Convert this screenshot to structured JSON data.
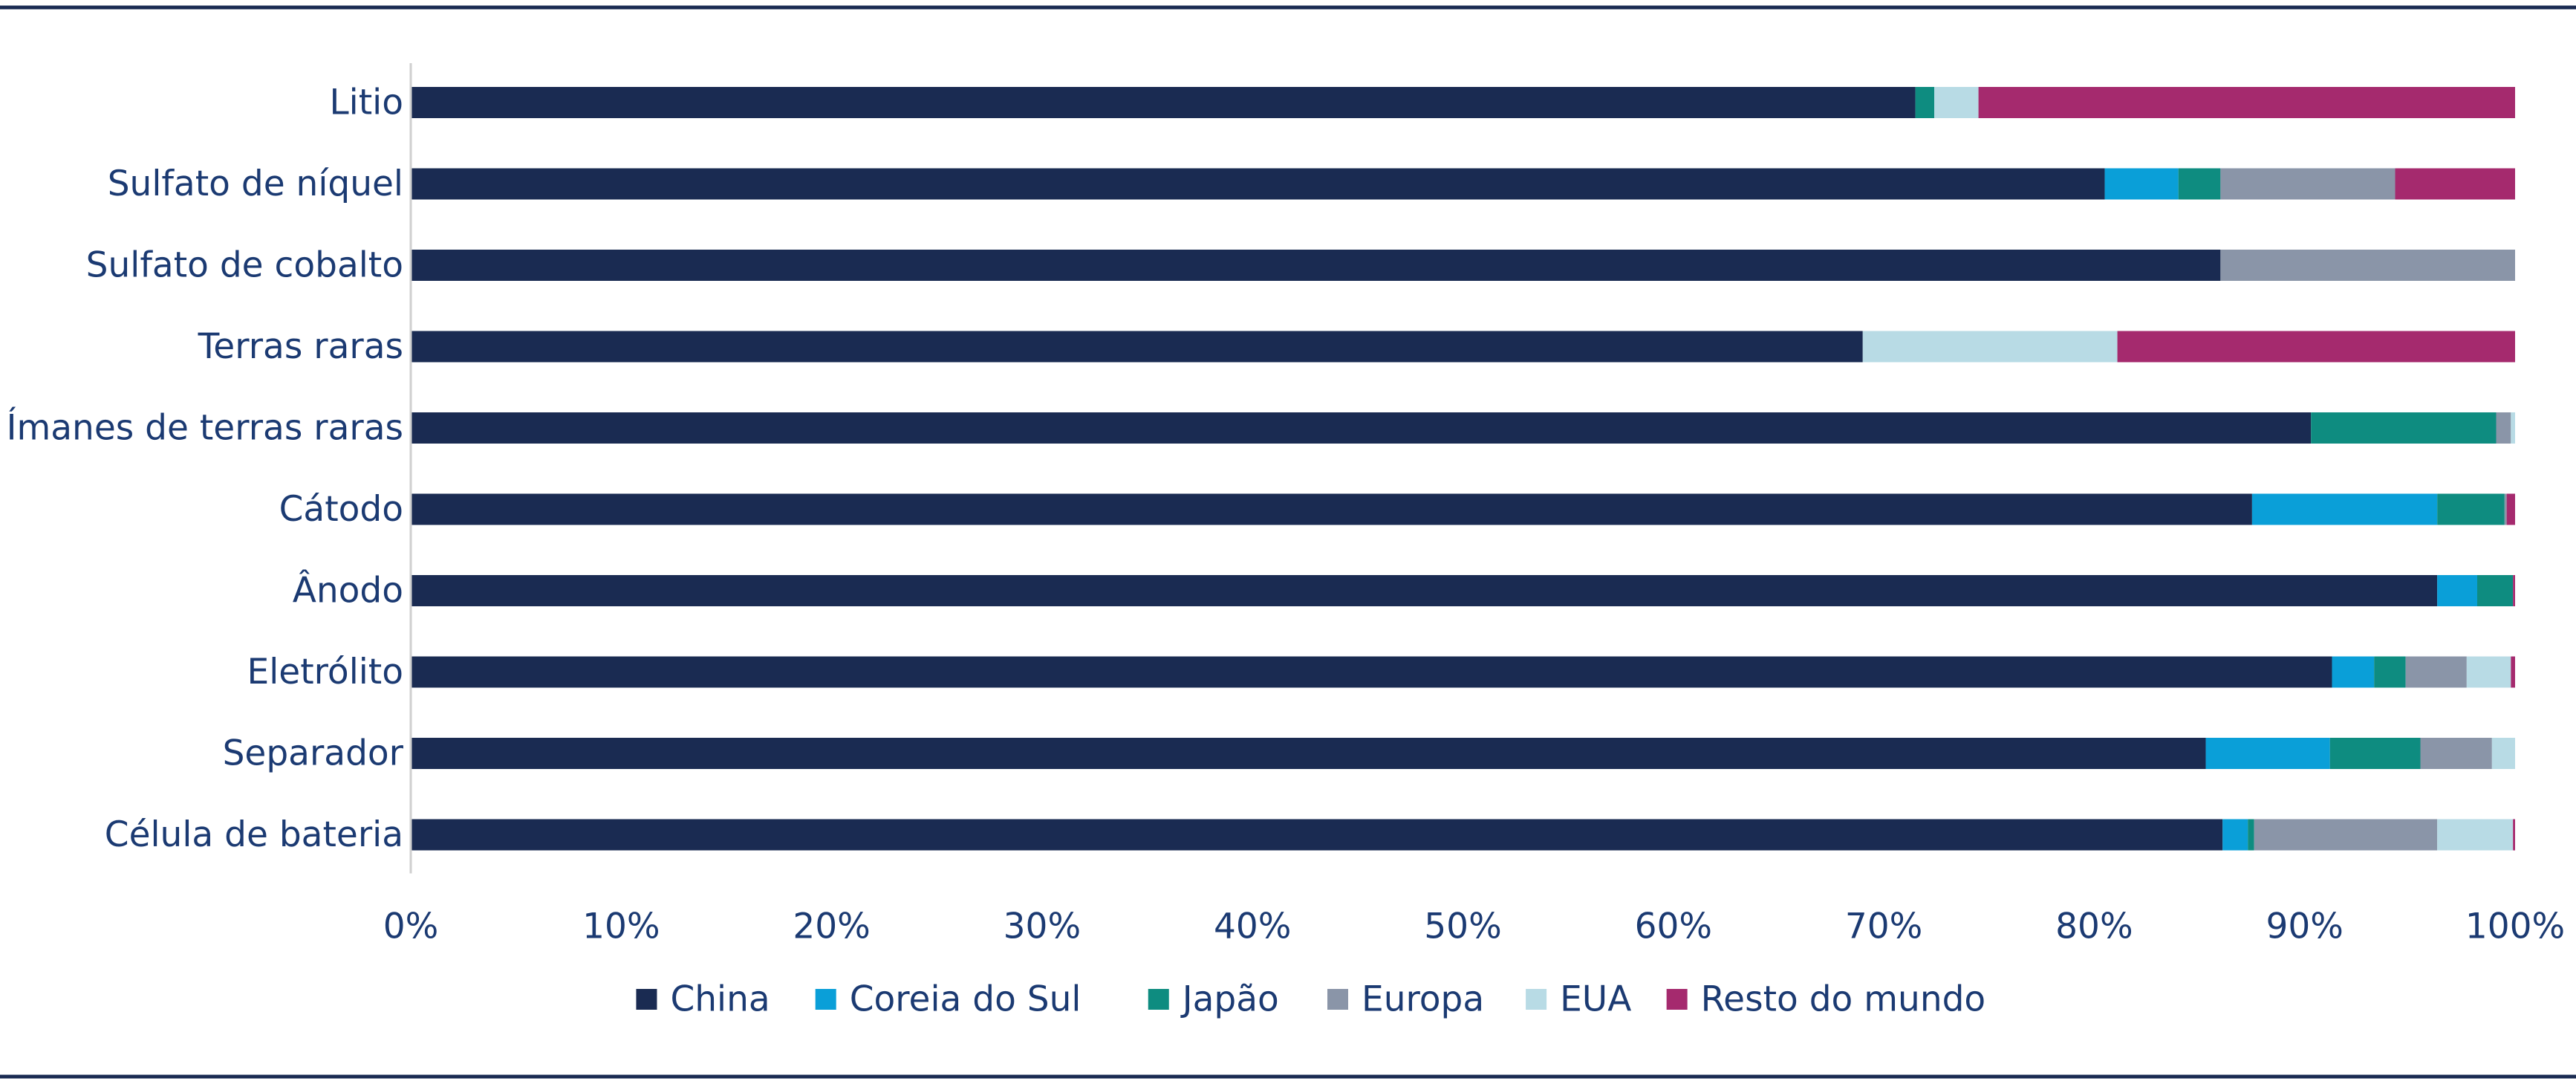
{
  "chart_data": {
    "type": "bar",
    "orientation": "horizontal",
    "stacked": true,
    "categories": [
      "Litio",
      "Sulfato de níquel",
      "Sulfato de cobalto",
      "Terras raras",
      "Ímanes de terras raras",
      "Cátodo",
      "Ânodo",
      "Eletrólito",
      "Separador",
      "Célula de bateria"
    ],
    "series": [
      {
        "name": "China",
        "color": "#1a2b52",
        "values": [
          71.5,
          80.5,
          86.0,
          69.0,
          90.3,
          87.5,
          96.3,
          91.3,
          85.3,
          86.1
        ]
      },
      {
        "name": "Coreia do Sul",
        "color": "#0a9fd8",
        "values": [
          0,
          3.5,
          0,
          0,
          0,
          8.8,
          1.9,
          2.0,
          5.9,
          1.2
        ]
      },
      {
        "name": "Japão",
        "color": "#0e8c80",
        "values": [
          0.9,
          2.0,
          0,
          0,
          8.8,
          3.2,
          1.7,
          1.5,
          4.3,
          0.3
        ]
      },
      {
        "name": "Europa",
        "color": "#8a95a8",
        "values": [
          0,
          8.3,
          14.0,
          0,
          0.7,
          0.1,
          0,
          2.9,
          3.4,
          8.7
        ]
      },
      {
        "name": "EUA",
        "color": "#b8dbe5",
        "values": [
          2.1,
          0,
          0,
          12.1,
          0.2,
          0,
          0,
          2.1,
          1.1,
          3.6
        ]
      },
      {
        "name": "Resto do mundo",
        "color": "#a52a6e",
        "values": [
          25.5,
          5.7,
          0,
          18.9,
          0,
          0.4,
          0.1,
          0.2,
          0,
          0.1
        ]
      }
    ],
    "xlim": [
      0,
      100
    ],
    "xticks": [
      "0%",
      "10%",
      "20%",
      "30%",
      "40%",
      "50%",
      "60%",
      "70%",
      "80%",
      "90%",
      "100%"
    ],
    "grid": false,
    "legend_position": "bottom"
  },
  "theme": {
    "text_color": "#1b3a72",
    "axis_color": "#cfcfcf",
    "rule_color": "#1a2b52"
  }
}
